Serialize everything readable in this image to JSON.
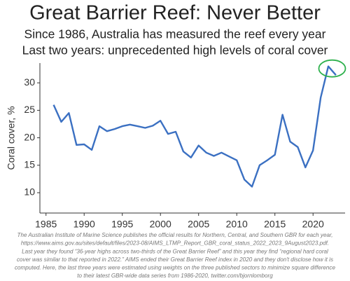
{
  "chart_data": {
    "type": "line",
    "title": "Great Barrier Reef: Never Better",
    "subtitle": [
      "Since 1986, Australia has measured the reef every year",
      "Last two years: unprecedented high levels of coral cover"
    ],
    "y_label": "Coral cover, %",
    "x": [
      1986,
      1987,
      1988,
      1989,
      1990,
      1991,
      1992,
      1993,
      1994,
      1995,
      1996,
      1997,
      1998,
      1999,
      2000,
      2001,
      2002,
      2003,
      2004,
      2005,
      2006,
      2007,
      2008,
      2009,
      2010,
      2011,
      2012,
      2013,
      2014,
      2015,
      2016,
      2017,
      2018,
      2019,
      2020,
      2021,
      2022,
      2023
    ],
    "values": [
      26.0,
      22.9,
      24.5,
      18.7,
      18.8,
      17.8,
      22.1,
      21.2,
      21.6,
      22.1,
      22.4,
      22.1,
      21.8,
      22.2,
      23.1,
      20.7,
      21.1,
      17.5,
      16.4,
      18.6,
      17.3,
      16.7,
      17.3,
      16.6,
      15.9,
      12.4,
      11.1,
      15.0,
      15.9,
      16.9,
      24.2,
      19.3,
      18.3,
      14.6,
      17.7,
      27.3,
      33.0,
      31.4
    ],
    "color": "#3b70c2",
    "highlight_color": "#2eb14d",
    "xlim": [
      1984.2,
      2024.2
    ],
    "ylim": [
      6.3,
      33.6
    ],
    "xticks": [
      1985,
      1990,
      1995,
      2000,
      2005,
      2010,
      2015,
      2020
    ],
    "yticks": [
      10,
      15,
      20,
      25,
      30
    ],
    "footnote": [
      "The Australian Institute of Marine Science publishes the official results for Northern, Central, and Southern GBR for each year,",
      "https://www.aims.gov.au/sites/default/files/2023-08/AIMS_LTMP_Report_GBR_coral_status_2022_2023_9August2023.pdf.",
      "Last year they found “36-year highs across two-thirds of the Great Barrier Reef” and this year they find “regional hard coral",
      "cover was similar to that reported in 2022.” AIMS ended their Great Barrier Reef index in 2020 and they don't disclose how it is",
      "computed. Here, the last three years were estimated using weights on the three published sectors to minimize square difference",
      "to their latest GBR-wide data series from 1986-2020, twitter.com/bjornlomborg"
    ]
  }
}
